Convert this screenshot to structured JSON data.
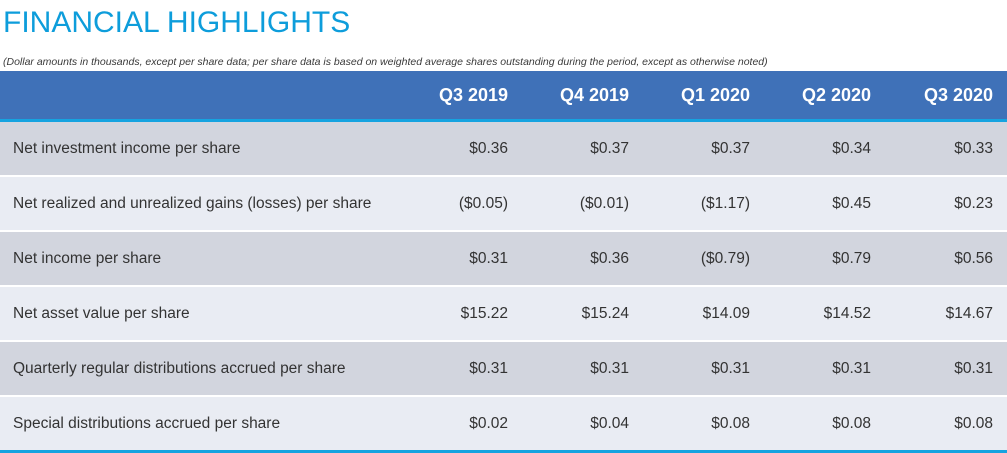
{
  "title": "FINANCIAL HIGHLIGHTS",
  "subtitle": "(Dollar amounts in thousands, except per share data; per share data is based on weighted average shares outstanding during the period, except as otherwise noted)",
  "colors": {
    "title": "#0d9ddb",
    "header_bg": "#3f71b8",
    "accent_line": "#16a3e0",
    "row_dark": "#d2d5de",
    "row_light": "#e9ecf3"
  },
  "table": {
    "columns": [
      "Q3 2019",
      "Q4 2019",
      "Q1 2020",
      "Q2 2020",
      "Q3 2020"
    ],
    "rows": [
      {
        "label": "Net investment income per share",
        "values": [
          "$0.36",
          "$0.37",
          "$0.37",
          "$0.34",
          "$0.33"
        ]
      },
      {
        "label": "Net realized and unrealized gains (losses) per share",
        "values": [
          "($0.05)",
          "($0.01)",
          "($1.17)",
          "$0.45",
          "$0.23"
        ]
      },
      {
        "label": "Net income per share",
        "values": [
          "$0.31",
          "$0.36",
          "($0.79)",
          "$0.79",
          "$0.56"
        ]
      },
      {
        "label": "Net asset value per share",
        "values": [
          "$15.22",
          "$15.24",
          "$14.09",
          "$14.52",
          "$14.67"
        ]
      },
      {
        "label": "Quarterly regular distributions accrued per share",
        "values": [
          "$0.31",
          "$0.31",
          "$0.31",
          "$0.31",
          "$0.31"
        ]
      },
      {
        "label": "Special distributions accrued per share",
        "values": [
          "$0.02",
          "$0.04",
          "$0.08",
          "$0.08",
          "$0.08"
        ]
      }
    ]
  }
}
